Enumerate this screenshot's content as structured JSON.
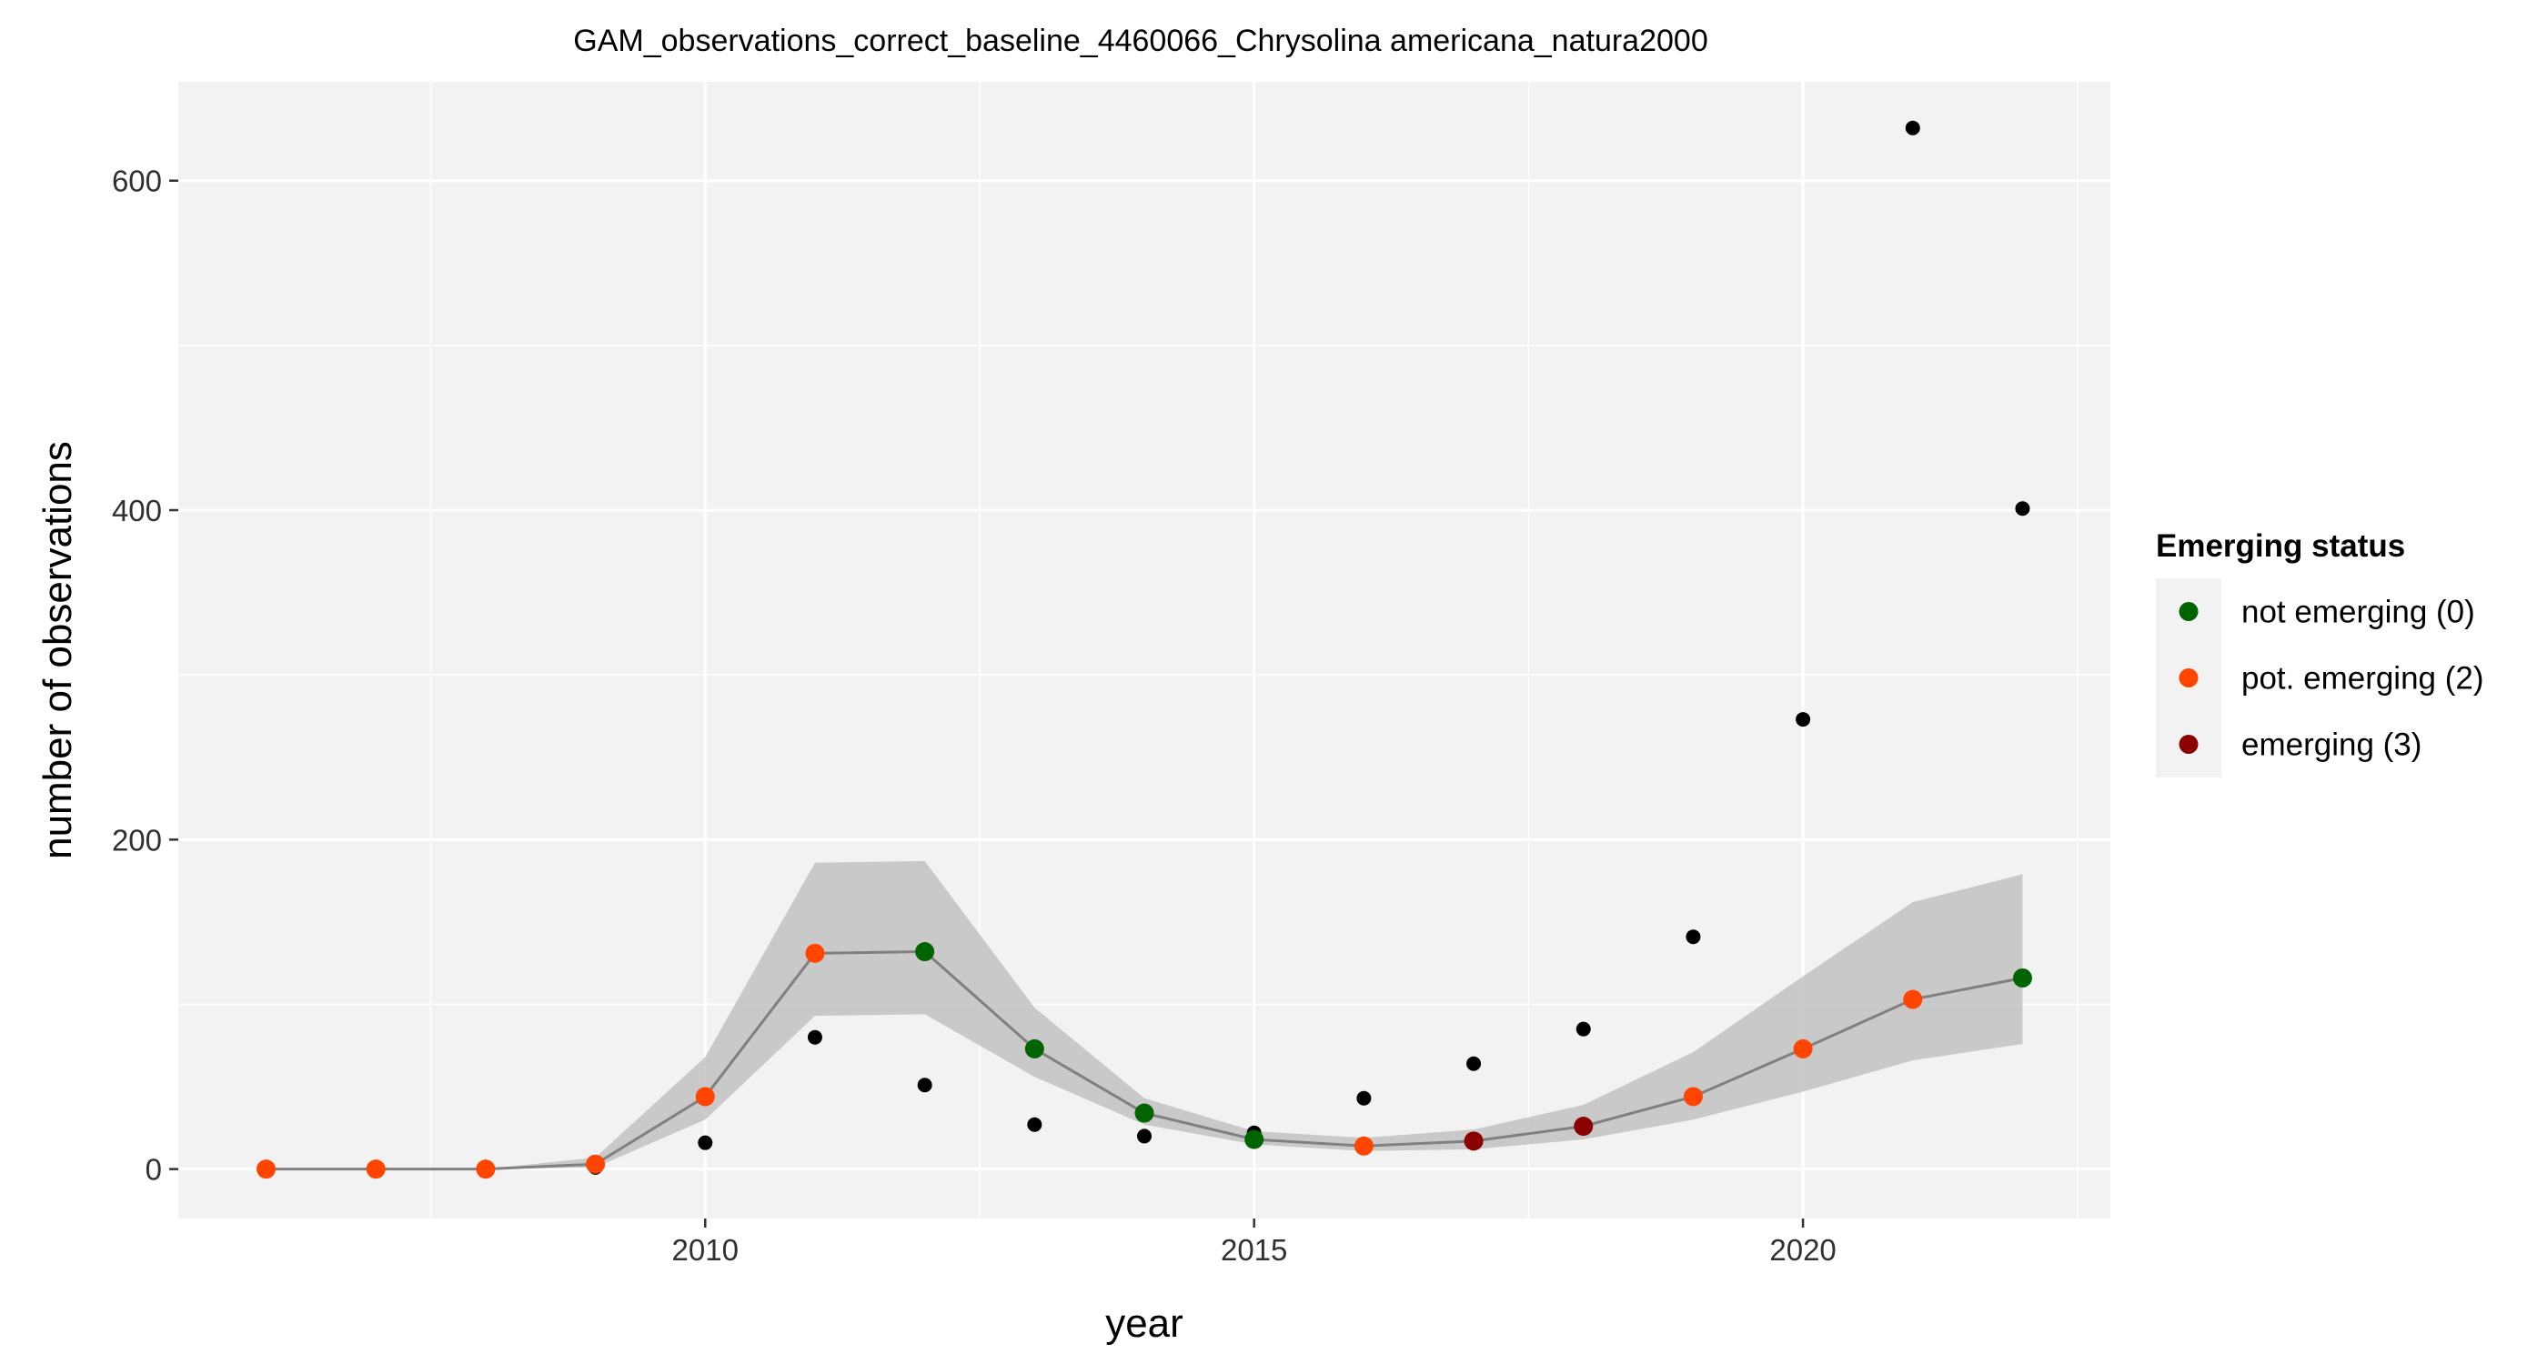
{
  "chart_data": {
    "type": "scatter",
    "title": "GAM_observations_correct_baseline_4460066_Chrysolina americana_natura2000",
    "xlabel": "year",
    "ylabel": "number of observations",
    "xlim": [
      2005.2,
      2022.8
    ],
    "ylim": [
      -30,
      660
    ],
    "x_ticks": [
      2010,
      2015,
      2020
    ],
    "y_ticks": [
      0,
      200,
      400,
      600
    ],
    "grid": true,
    "legend": {
      "title": "Emerging status",
      "placement": "right",
      "entries": [
        {
          "label": "not emerging (0)",
          "color": "#006400"
        },
        {
          "label": "pot. emerging (2)",
          "color": "#FF4500"
        },
        {
          "label": "emerging (3)",
          "color": "#8B0000"
        }
      ]
    },
    "observed": {
      "color": "#000000",
      "x": [
        2009,
        2010,
        2011,
        2012,
        2013,
        2014,
        2015,
        2016,
        2017,
        2018,
        2019,
        2020,
        2021,
        2022
      ],
      "y": [
        1,
        16,
        80,
        51,
        27,
        20,
        22,
        43,
        64,
        85,
        141,
        273,
        632,
        401
      ]
    },
    "fit": {
      "line_color": "#808080",
      "band_color": "#BEBEBE",
      "x": [
        2006,
        2007,
        2008,
        2009,
        2010,
        2011,
        2012,
        2013,
        2014,
        2015,
        2016,
        2017,
        2018,
        2019,
        2020,
        2021,
        2022
      ],
      "y": [
        0,
        0,
        0,
        3,
        44,
        131,
        132,
        73,
        34,
        18,
        14,
        17,
        26,
        44,
        73,
        103,
        116
      ],
      "lower": [
        0,
        0,
        0,
        1,
        30,
        93,
        94,
        56,
        27,
        15,
        11,
        12,
        18,
        30,
        47,
        66,
        76
      ],
      "upper": [
        0,
        0,
        0,
        7,
        68,
        186,
        187,
        98,
        43,
        23,
        19,
        24,
        39,
        71,
        117,
        162,
        179
      ],
      "status": [
        2,
        2,
        2,
        2,
        2,
        2,
        0,
        0,
        0,
        0,
        2,
        3,
        3,
        2,
        2,
        2,
        0
      ]
    }
  }
}
